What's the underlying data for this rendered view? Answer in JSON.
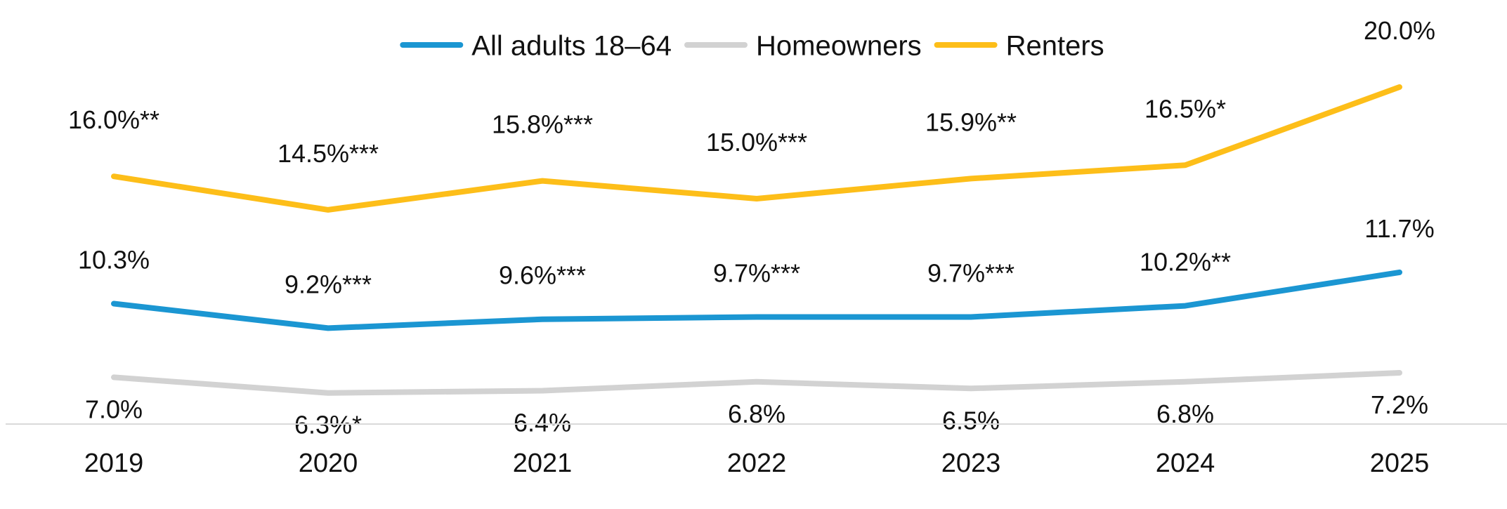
{
  "chart_data": {
    "type": "line",
    "categories": [
      "2019",
      "2020",
      "2021",
      "2022",
      "2023",
      "2024",
      "2025"
    ],
    "series": [
      {
        "name": "All adults 18–64",
        "color": "#1B96D2",
        "values": [
          10.3,
          9.2,
          9.6,
          9.7,
          9.7,
          10.2,
          11.7
        ],
        "labels": [
          "10.3%",
          "9.2%***",
          "9.6%***",
          "9.7%***",
          "9.7%***",
          "10.2%**",
          "11.7%"
        ]
      },
      {
        "name": "Homeowners",
        "color": "#D2D2D2",
        "values": [
          7.0,
          6.3,
          6.4,
          6.8,
          6.5,
          6.8,
          7.2
        ],
        "labels": [
          "7.0%",
          "6.3%*",
          "6.4%",
          "6.8%",
          "6.5%",
          "6.8%",
          "7.2%"
        ]
      },
      {
        "name": "Renters",
        "color": "#FDBE19",
        "values": [
          16.0,
          14.5,
          15.8,
          15.0,
          15.9,
          16.5,
          20.0
        ],
        "labels": [
          "16.0%**",
          "14.5%***",
          "15.8%***",
          "15.0%***",
          "15.9%**",
          "16.5%*",
          "20.0%"
        ]
      }
    ],
    "legend_position": "top-center",
    "grid": false,
    "axis_line_color": "#D9D9D9"
  }
}
